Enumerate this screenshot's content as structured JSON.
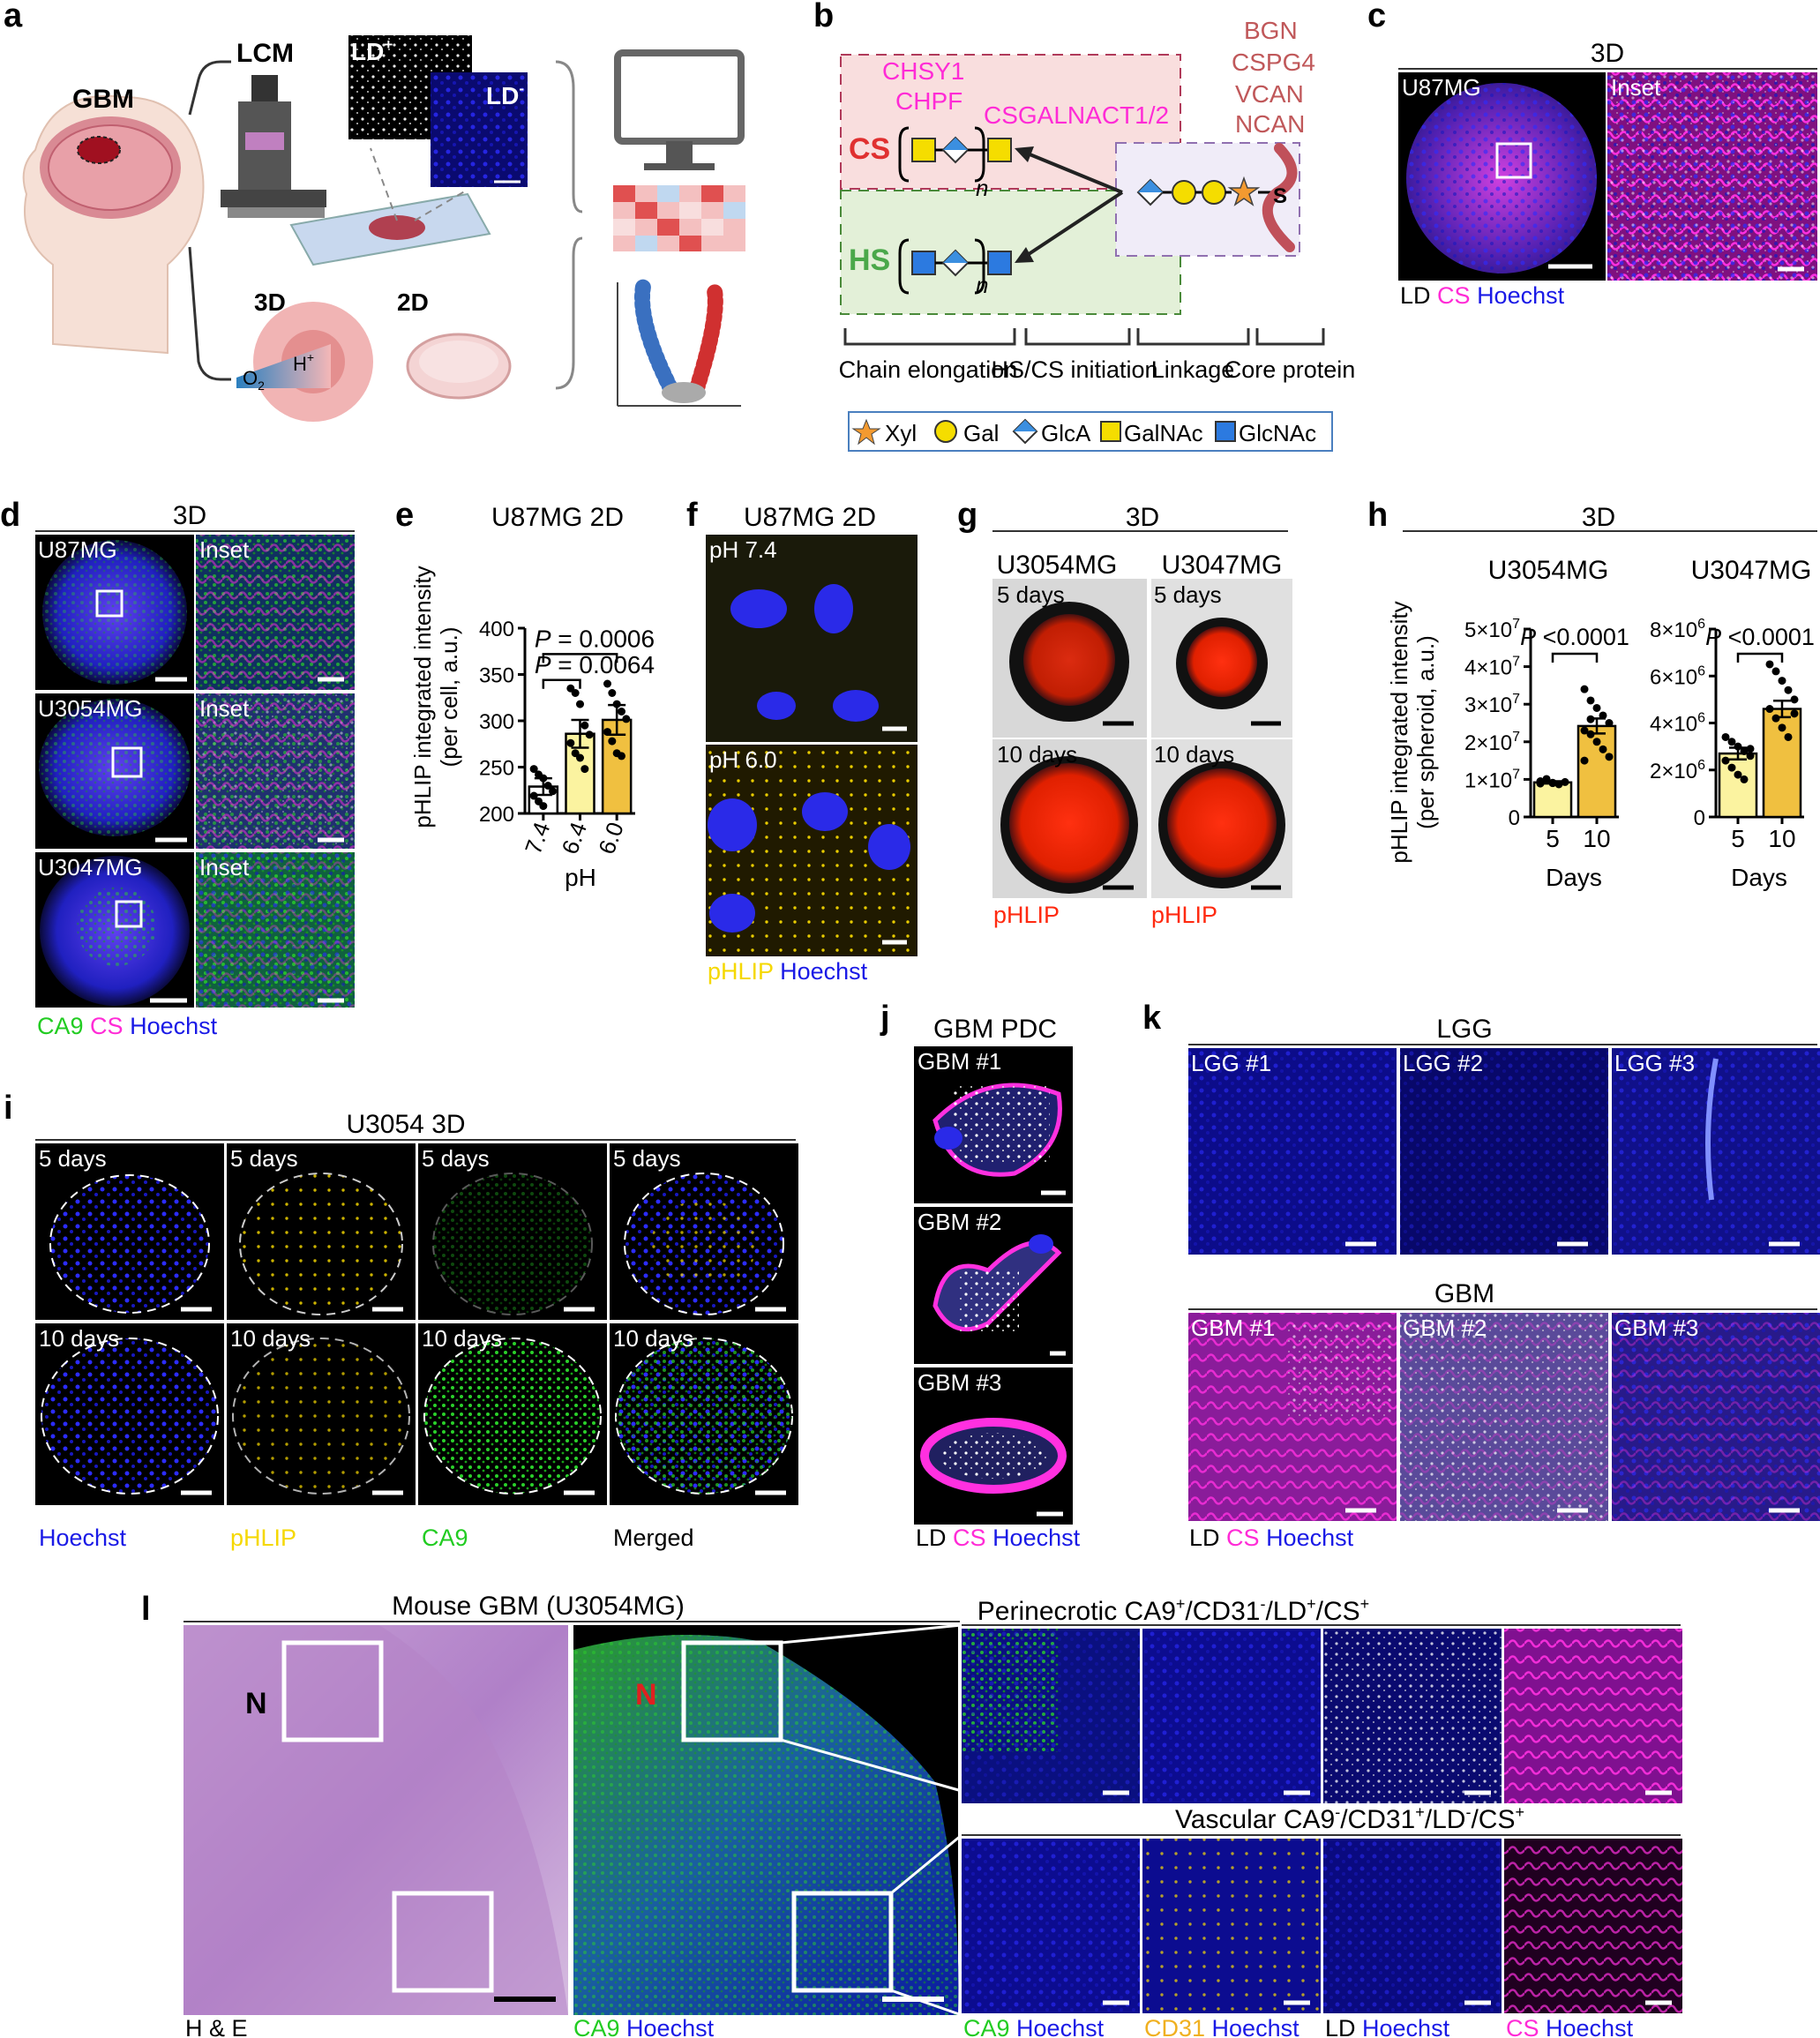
{
  "colors": {
    "cs_red": "#e03030",
    "hs_green": "#4aa84a",
    "magenta": "#ff2bd6",
    "blue_hoechst": "#1a1ae6",
    "green_ca9": "#22cc22",
    "yellow": "#f5d800",
    "red_phlip": "#ff2a10",
    "bar_fill_74": "#ffffff",
    "bar_fill_64": "#fbf3a0",
    "bar_fill_60": "#f0c040",
    "bgn_text": "#c0585a"
  },
  "panel_letters": {
    "a": "a",
    "b": "b",
    "c": "c",
    "d": "d",
    "e": "e",
    "f": "f",
    "g": "g",
    "h": "h",
    "i": "i",
    "j": "j",
    "k": "k",
    "l": "l"
  },
  "a": {
    "gbm": "GBM",
    "lcm": "LCM",
    "ld_plus": "LD",
    "ld_plus_sup": "+",
    "ld_minus": "LD",
    "ld_minus_sup": "-",
    "three_d": "3D",
    "two_d": "2D",
    "o2": "O",
    "o2_sub": "2",
    "h_plus": "H",
    "h_plus_sup": "+"
  },
  "b": {
    "chsy1": "CHSY1",
    "chpf": "CHPF",
    "csgalnact": "CSGALNACT1/2",
    "cs": "CS",
    "hs": "HS",
    "n": "n",
    "proteins": [
      "BGN",
      "CSPG4",
      "VCAN",
      "NCAN"
    ],
    "s": "S",
    "sections": [
      "Chain elongation",
      "HS/CS initiation",
      "Linkage",
      "Core protein"
    ],
    "legend": [
      "Xyl",
      "Gal",
      "GlcA",
      "GalNAc",
      "GlcNAc"
    ]
  },
  "c": {
    "title": "3D",
    "cell": "U87MG",
    "inset": "Inset",
    "legend": [
      {
        "text": "LD",
        "color": "#000000"
      },
      {
        "text": "CS",
        "color": "#ff2bd6"
      },
      {
        "text": "Hoechst",
        "color": "#1a1ae6"
      }
    ]
  },
  "d": {
    "title": "3D",
    "rows": [
      "U87MG",
      "U3054MG",
      "U3047MG"
    ],
    "inset": "Inset",
    "legend": [
      {
        "text": "CA9",
        "color": "#22cc22"
      },
      {
        "text": "CS",
        "color": "#ff2bd6"
      },
      {
        "text": "Hoechst",
        "color": "#1a1ae6"
      }
    ]
  },
  "chart_data": [
    {
      "panel": "e",
      "type": "bar",
      "title": "U87MG 2D",
      "xlabel": "pH",
      "ylabel": "pHLIP integrated intensity (per cell, a.u.)",
      "categories": [
        "7.4",
        "6.4",
        "6.0"
      ],
      "values": [
        229,
        286,
        301
      ],
      "errors": [
        9,
        15,
        16
      ],
      "ylim": [
        200,
        400
      ],
      "yticks": [
        200,
        250,
        300,
        350,
        400
      ],
      "points": [
        [
          248,
          242,
          238,
          230,
          224,
          219,
          213,
          208
        ],
        [
          335,
          330,
          318,
          295,
          285,
          276,
          265,
          260,
          248
        ],
        [
          340,
          330,
          318,
          310,
          302,
          288,
          278,
          265,
          262
        ]
      ],
      "annotations": [
        {
          "label": "P",
          "text": "= 0.0006",
          "pair": [
            "7.4",
            "6.0"
          ]
        },
        {
          "label": "P",
          "text": "= 0.0064",
          "pair": [
            "7.4",
            "6.4"
          ]
        }
      ]
    },
    {
      "panel": "h-1",
      "type": "bar",
      "title": "U3054MG",
      "xlabel": "Days",
      "ylabel": "pHLIP integrated intensity (per spheroid, a.u.)",
      "categories": [
        "5",
        "10"
      ],
      "values": [
        9200000.0,
        24200000.0
      ],
      "errors": [
        300000.0,
        2000000.0
      ],
      "ylim": [
        0,
        50000000.0
      ],
      "yticks": [
        "0",
        "1×10^7",
        "2×10^7",
        "3×10^7",
        "4×10^7",
        "5×10^7"
      ],
      "points": [
        [
          9500000.0,
          9800000.0,
          9000000.0,
          8700000.0,
          9300000.0,
          8900000.0,
          10100000.0,
          9100000.0
        ],
        [
          34000000.0,
          31000000.0,
          29000000.0,
          27000000.0,
          25000000.0,
          23000000.0,
          22000000.0,
          20000000.0,
          18000000.0,
          16000000.0,
          15000000.0,
          26000000.0
        ]
      ],
      "annotations": [
        {
          "label": "P",
          "text": "<0.0001"
        }
      ]
    },
    {
      "panel": "h-2",
      "type": "bar",
      "title": "U3047MG",
      "xlabel": "Days",
      "ylabel": "",
      "categories": [
        "5",
        "10"
      ],
      "values": [
        2700000.0,
        4600000.0
      ],
      "errors": [
        250000.0,
        350000.0
      ],
      "ylim": [
        0,
        8000000.0
      ],
      "yticks": [
        "0",
        "2×10^6",
        "4×10^6",
        "6×10^6",
        "8×10^6"
      ],
      "points": [
        [
          3400000.0,
          3200000.0,
          3000000.0,
          2800000.0,
          2600000.0,
          2400000.0,
          2100000.0,
          1800000.0,
          1600000.0,
          2900000.0
        ],
        [
          6500000.0,
          6200000.0,
          5800000.0,
          5400000.0,
          5000000.0,
          4600000.0,
          4200000.0,
          3800000.0,
          3400000.0,
          4400000.0
        ]
      ],
      "annotations": [
        {
          "label": "P",
          "text": "<0.0001"
        }
      ]
    }
  ],
  "h": {
    "header": "3D"
  },
  "f": {
    "title": "U87MG 2D",
    "ph74": "pH 7.4",
    "ph60": "pH 6.0",
    "legend": [
      {
        "text": "pHLIP",
        "color": "#f5d800"
      },
      {
        "text": "Hoechst",
        "color": "#1a1ae6"
      }
    ]
  },
  "g": {
    "title": "3D",
    "cols": [
      "U3054MG",
      "U3047MG"
    ],
    "d5": "5 days",
    "d10": "10 days",
    "phlip": "pHLIP"
  },
  "i": {
    "title": "U3054 3D",
    "d5": "5 days",
    "d10": "10 days",
    "labels": [
      {
        "text": "Hoechst",
        "color": "#1a1ae6"
      },
      {
        "text": "pHLIP",
        "color": "#f5d800"
      },
      {
        "text": "CA9",
        "color": "#22cc22"
      },
      {
        "text": "Merged",
        "color": "#000000"
      }
    ]
  },
  "j": {
    "title": "GBM PDC",
    "rows": [
      "GBM #1",
      "GBM #2",
      "GBM #3"
    ],
    "legend": [
      {
        "text": "LD",
        "color": "#000000"
      },
      {
        "text": "CS",
        "color": "#ff2bd6"
      },
      {
        "text": "Hoechst",
        "color": "#1a1ae6"
      }
    ]
  },
  "k": {
    "lgg_title": "LGG",
    "lgg": [
      "LGG #1",
      "LGG #2",
      "LGG #3"
    ],
    "gbm_title": "GBM",
    "gbm": [
      "GBM #1",
      "GBM #2",
      "GBM #3"
    ],
    "legend": [
      {
        "text": "LD",
        "color": "#000000"
      },
      {
        "text": "CS",
        "color": "#ff2bd6"
      },
      {
        "text": "Hoechst",
        "color": "#1a1ae6"
      }
    ]
  },
  "l": {
    "title": "Mouse GBM (U3054MG)",
    "n": "N",
    "he": "H & E",
    "ca9": "CA9",
    "hoechst": "Hoechst",
    "peri": "Perinecrotic CA9",
    "peri_s1": "+",
    "peri_b": "/CD31",
    "peri_s2": "-",
    "peri_c": "/LD",
    "peri_s3": "+",
    "peri_d": "/CS",
    "peri_s4": "+",
    "vasc": "Vascular CA9",
    "vasc_s1": "-",
    "vasc_b": "/CD31",
    "vasc_s2": "+",
    "vasc_c": "/LD",
    "vasc_s3": "-",
    "vasc_d": "/CS",
    "vasc_s4": "+",
    "bottom": [
      {
        "a": "CA9",
        "ac": "#22cc22",
        "b": "Hoechst"
      },
      {
        "a": "CD31",
        "ac": "#f0b020",
        "b": "Hoechst"
      },
      {
        "a": "LD",
        "ac": "#000000",
        "b": "Hoechst"
      },
      {
        "a": "CS",
        "ac": "#ff2bd6",
        "b": "Hoechst"
      }
    ]
  }
}
